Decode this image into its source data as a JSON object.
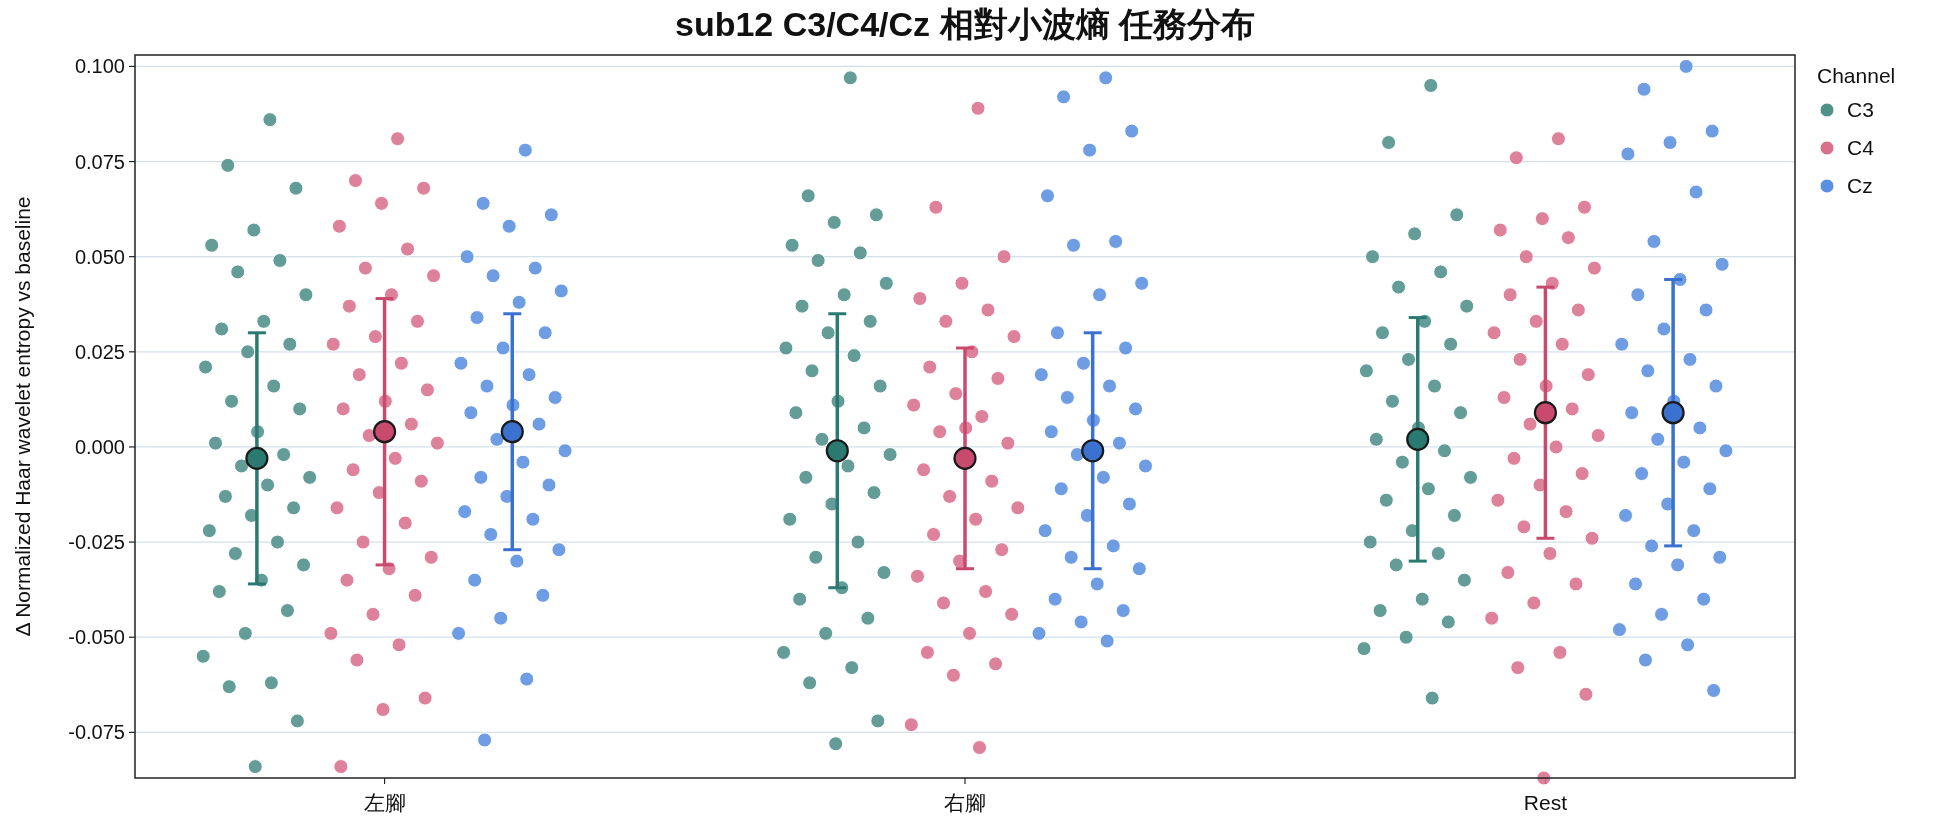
{
  "chart_data": {
    "type": "scatter",
    "title": "sub12 C3/C4/Cz 相對小波熵 任務分布",
    "ylabel": "Δ Normalized Haar wavelet entropy vs baseline",
    "legend_title": "Channel",
    "legend": "top right",
    "grid": "y",
    "marker": "circle",
    "categories": [
      "左腳",
      "右腳",
      "Rest"
    ],
    "ylim": [
      -0.087,
      0.103
    ],
    "yticks": [
      {
        "value": -0.075,
        "label": "-0.075"
      },
      {
        "value": -0.05,
        "label": "-0.050"
      },
      {
        "value": -0.025,
        "label": "-0.025"
      },
      {
        "value": 0,
        "label": "0.000"
      },
      {
        "value": 0.025,
        "label": "0.025"
      },
      {
        "value": 0.05,
        "label": "0.050"
      },
      {
        "value": 0.075,
        "label": "0.075"
      },
      {
        "value": 0.1,
        "label": "0.100"
      }
    ],
    "series": [
      {
        "name": "C3",
        "color": "#4f9089",
        "x": [
          "左腳",
          "左腳",
          "左腳",
          "左腳",
          "左腳",
          "左腳",
          "左腳",
          "左腳",
          "左腳",
          "左腳",
          "左腳",
          "左腳",
          "左腳",
          "左腳",
          "左腳",
          "左腳",
          "左腳",
          "左腳",
          "左腳",
          "左腳",
          "左腳",
          "左腳",
          "左腳",
          "左腳",
          "左腳",
          "左腳",
          "左腳",
          "左腳",
          "左腳",
          "左腳",
          "左腳",
          "左腳",
          "左腳",
          "左腳",
          "左腳",
          "左腳",
          "左腳",
          "左腳",
          "右腳",
          "右腳",
          "右腳",
          "右腳",
          "右腳",
          "右腳",
          "右腳",
          "右腳",
          "右腳",
          "右腳",
          "右腳",
          "右腳",
          "右腳",
          "右腳",
          "右腳",
          "右腳",
          "右腳",
          "右腳",
          "右腳",
          "右腳",
          "右腳",
          "右腳",
          "右腳",
          "右腳",
          "右腳",
          "右腳",
          "右腳",
          "右腳",
          "右腳",
          "右腳",
          "右腳",
          "右腳",
          "右腳",
          "右腳",
          "右腳",
          "右腳",
          "右腳",
          "右腳",
          "Rest",
          "Rest",
          "Rest",
          "Rest",
          "Rest",
          "Rest",
          "Rest",
          "Rest",
          "Rest",
          "Rest",
          "Rest",
          "Rest",
          "Rest",
          "Rest",
          "Rest",
          "Rest",
          "Rest",
          "Rest",
          "Rest",
          "Rest",
          "Rest",
          "Rest",
          "Rest",
          "Rest",
          "Rest",
          "Rest",
          "Rest",
          "Rest",
          "Rest",
          "Rest",
          "Rest",
          "Rest",
          "Rest",
          "Rest",
          "Rest"
        ],
        "values": [
          0.086,
          0.074,
          0.068,
          0.057,
          0.053,
          0.049,
          0.046,
          0.04,
          0.033,
          0.031,
          0.027,
          0.025,
          0.021,
          0.016,
          0.012,
          0.01,
          0.004,
          0.001,
          -0.002,
          -0.005,
          -0.008,
          -0.01,
          -0.013,
          -0.016,
          -0.018,
          -0.022,
          -0.025,
          -0.028,
          -0.031,
          -0.035,
          -0.038,
          -0.043,
          -0.049,
          -0.055,
          -0.062,
          -0.063,
          -0.072,
          -0.084,
          0.097,
          0.066,
          0.061,
          0.059,
          0.053,
          0.051,
          0.049,
          0.043,
          0.04,
          0.037,
          0.033,
          0.03,
          0.026,
          0.024,
          0.02,
          0.016,
          0.012,
          0.009,
          0.005,
          0.002,
          -0.002,
          -0.005,
          -0.008,
          -0.012,
          -0.015,
          -0.019,
          -0.025,
          -0.029,
          -0.033,
          -0.037,
          -0.04,
          -0.045,
          -0.049,
          -0.054,
          -0.058,
          -0.062,
          -0.072,
          -0.078,
          0.095,
          0.08,
          0.061,
          0.056,
          0.05,
          0.046,
          0.042,
          0.037,
          0.033,
          0.03,
          0.027,
          0.023,
          0.02,
          0.016,
          0.012,
          0.009,
          0.005,
          0.002,
          -0.001,
          -0.004,
          -0.008,
          -0.011,
          -0.014,
          -0.018,
          -0.022,
          -0.025,
          -0.028,
          -0.031,
          -0.035,
          -0.04,
          -0.043,
          -0.046,
          -0.05,
          -0.053,
          -0.066
        ]
      },
      {
        "name": "C4",
        "color": "#d9708c",
        "x": [
          "左腳",
          "左腳",
          "左腳",
          "左腳",
          "左腳",
          "左腳",
          "左腳",
          "左腳",
          "左腳",
          "左腳",
          "左腳",
          "左腳",
          "左腳",
          "左腳",
          "左腳",
          "左腳",
          "左腳",
          "左腳",
          "左腳",
          "左腳",
          "左腳",
          "左腳",
          "左腳",
          "左腳",
          "左腳",
          "左腳",
          "左腳",
          "左腳",
          "左腳",
          "左腳",
          "左腳",
          "左腳",
          "左腳",
          "左腳",
          "左腳",
          "左腳",
          "左腳",
          "左腳",
          "左腳",
          "右腳",
          "右腳",
          "右腳",
          "右腳",
          "右腳",
          "右腳",
          "右腳",
          "右腳",
          "右腳",
          "右腳",
          "右腳",
          "右腳",
          "右腳",
          "右腳",
          "右腳",
          "右腳",
          "右腳",
          "右腳",
          "右腳",
          "右腳",
          "右腳",
          "右腳",
          "右腳",
          "右腳",
          "右腳",
          "右腳",
          "右腳",
          "右腳",
          "右腳",
          "右腳",
          "右腳",
          "右腳",
          "右腳",
          "右腳",
          "右腳",
          "Rest",
          "Rest",
          "Rest",
          "Rest",
          "Rest",
          "Rest",
          "Rest",
          "Rest",
          "Rest",
          "Rest",
          "Rest",
          "Rest",
          "Rest",
          "Rest",
          "Rest",
          "Rest",
          "Rest",
          "Rest",
          "Rest",
          "Rest",
          "Rest",
          "Rest",
          "Rest",
          "Rest",
          "Rest",
          "Rest",
          "Rest",
          "Rest",
          "Rest",
          "Rest",
          "Rest",
          "Rest",
          "Rest",
          "Rest",
          "Rest",
          "Rest",
          "Rest",
          "Rest"
        ],
        "values": [
          0.081,
          0.07,
          0.068,
          0.064,
          0.058,
          0.052,
          0.047,
          0.045,
          0.04,
          0.037,
          0.033,
          0.029,
          0.027,
          0.022,
          0.019,
          0.015,
          0.012,
          0.01,
          0.006,
          0.003,
          0.001,
          -0.003,
          -0.006,
          -0.009,
          -0.012,
          -0.016,
          -0.02,
          -0.025,
          -0.029,
          -0.032,
          -0.035,
          -0.039,
          -0.044,
          -0.049,
          -0.052,
          -0.056,
          -0.066,
          -0.069,
          -0.084,
          0.089,
          0.063,
          0.05,
          0.043,
          0.039,
          0.036,
          0.033,
          0.029,
          0.025,
          0.021,
          0.018,
          0.014,
          0.011,
          0.008,
          0.004,
          0.001,
          0.005,
          -0.006,
          -0.009,
          -0.013,
          -0.016,
          -0.019,
          -0.023,
          -0.027,
          -0.03,
          -0.034,
          -0.038,
          -0.041,
          -0.044,
          -0.049,
          -0.054,
          -0.057,
          -0.06,
          -0.073,
          -0.079,
          0.081,
          0.076,
          0.063,
          0.06,
          0.057,
          0.055,
          0.05,
          0.047,
          0.043,
          0.04,
          0.036,
          0.033,
          0.03,
          0.027,
          0.023,
          0.019,
          0.016,
          0.013,
          0.01,
          0.006,
          0.003,
          0.0,
          -0.003,
          -0.007,
          -0.01,
          -0.014,
          -0.017,
          -0.021,
          -0.024,
          -0.028,
          -0.033,
          -0.036,
          -0.041,
          -0.045,
          -0.054,
          -0.058,
          -0.065,
          -0.087
        ]
      },
      {
        "name": "Cz",
        "color": "#5b8fe0",
        "x": [
          "左腳",
          "左腳",
          "左腳",
          "左腳",
          "左腳",
          "左腳",
          "左腳",
          "左腳",
          "左腳",
          "左腳",
          "左腳",
          "左腳",
          "左腳",
          "左腳",
          "左腳",
          "左腳",
          "左腳",
          "左腳",
          "左腳",
          "左腳",
          "左腳",
          "左腳",
          "左腳",
          "左腳",
          "左腳",
          "左腳",
          "左腳",
          "左腳",
          "左腳",
          "左腳",
          "左腳",
          "左腳",
          "左腳",
          "左腳",
          "左腳",
          "左腳",
          "右腳",
          "右腳",
          "右腳",
          "右腳",
          "右腳",
          "右腳",
          "右腳",
          "右腳",
          "右腳",
          "右腳",
          "右腳",
          "右腳",
          "右腳",
          "右腳",
          "右腳",
          "右腳",
          "右腳",
          "右腳",
          "右腳",
          "右腳",
          "右腳",
          "右腳",
          "右腳",
          "右腳",
          "右腳",
          "右腳",
          "右腳",
          "右腳",
          "右腳",
          "右腳",
          "右腳",
          "右腳",
          "右腳",
          "右腳",
          "右腳",
          "Rest",
          "Rest",
          "Rest",
          "Rest",
          "Rest",
          "Rest",
          "Rest",
          "Rest",
          "Rest",
          "Rest",
          "Rest",
          "Rest",
          "Rest",
          "Rest",
          "Rest",
          "Rest",
          "Rest",
          "Rest",
          "Rest",
          "Rest",
          "Rest",
          "Rest",
          "Rest",
          "Rest",
          "Rest",
          "Rest",
          "Rest",
          "Rest",
          "Rest",
          "Rest",
          "Rest",
          "Rest",
          "Rest",
          "Rest",
          "Rest",
          "Rest",
          "Rest"
        ],
        "values": [
          0.078,
          0.064,
          0.061,
          0.058,
          0.05,
          0.047,
          0.045,
          0.041,
          0.038,
          0.034,
          0.03,
          0.026,
          0.022,
          0.019,
          0.016,
          0.013,
          0.011,
          0.009,
          0.006,
          0.002,
          -0.001,
          -0.004,
          -0.008,
          -0.01,
          -0.013,
          -0.017,
          -0.019,
          -0.023,
          -0.027,
          -0.03,
          -0.035,
          -0.039,
          -0.045,
          -0.049,
          -0.061,
          -0.077,
          0.097,
          0.092,
          0.083,
          0.078,
          0.066,
          0.054,
          0.053,
          0.043,
          0.04,
          0.03,
          0.026,
          0.022,
          0.019,
          0.016,
          0.013,
          0.01,
          0.007,
          0.004,
          0.001,
          -0.002,
          -0.005,
          -0.008,
          -0.011,
          -0.015,
          -0.018,
          -0.022,
          -0.026,
          -0.029,
          -0.032,
          -0.036,
          -0.04,
          -0.043,
          -0.046,
          -0.049,
          -0.051,
          0.1,
          0.094,
          0.083,
          0.08,
          0.077,
          0.067,
          0.054,
          0.048,
          0.044,
          0.04,
          0.036,
          0.031,
          0.027,
          0.023,
          0.02,
          0.016,
          0.012,
          0.009,
          0.005,
          0.002,
          -0.001,
          -0.004,
          -0.007,
          -0.011,
          -0.015,
          -0.018,
          -0.022,
          -0.026,
          -0.029,
          -0.031,
          -0.036,
          -0.04,
          -0.044,
          -0.048,
          -0.052,
          -0.056,
          -0.064
        ]
      },
      {
        "color": "#2b7a72",
        "x": [
          "左腳",
          "右腳",
          "Rest"
        ],
        "values": [
          -0.003,
          -0.001,
          0.002
        ],
        "errors": [
          0.033,
          0.036,
          0.032
        ]
      },
      {
        "color": "#c84a6d",
        "x": [
          "左腳",
          "右腳",
          "Rest"
        ],
        "values": [
          0.004,
          -0.003,
          0.009
        ],
        "errors": [
          0.035,
          0.029,
          0.033
        ]
      },
      {
        "color": "#3b72d0",
        "x": [
          "左腳",
          "右腳",
          "Rest"
        ],
        "values": [
          0.004,
          -0.001,
          0.009
        ],
        "errors": [
          0.031,
          0.031,
          0.035
        ]
      }
    ]
  }
}
